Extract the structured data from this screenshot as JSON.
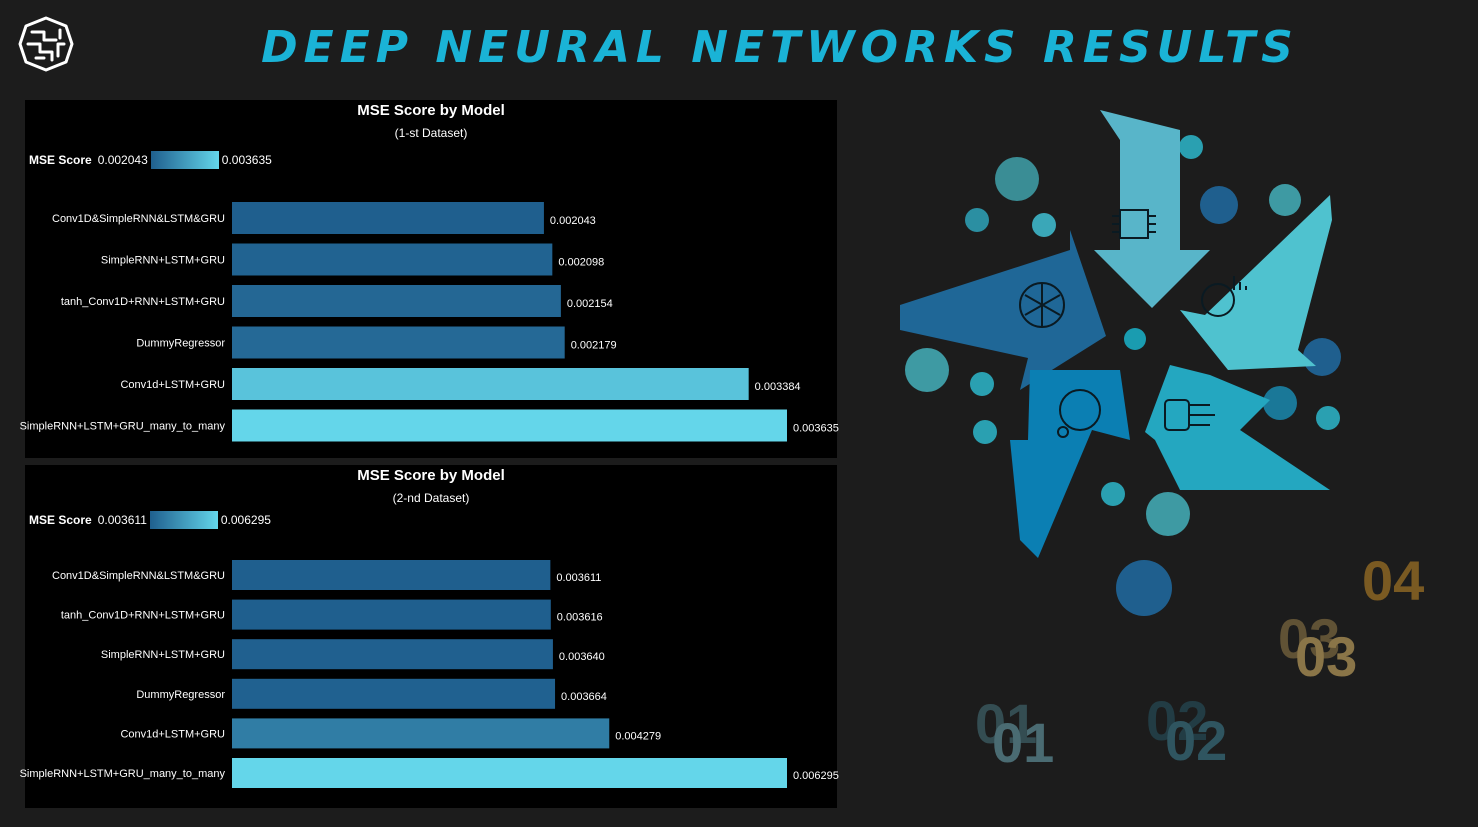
{
  "header": {
    "title": "DEEP NEURAL NETWORKS RESULTS",
    "logo_icon": "brain-circuit-icon"
  },
  "chart_data": [
    {
      "type": "bar",
      "orientation": "horizontal",
      "title": "MSE Score by Model",
      "subtitle": "(1-st Dataset)",
      "legend": {
        "title": "MSE Score",
        "min": "0.002043",
        "max": "0.003635",
        "placement": "top-left"
      },
      "color_scale": [
        "#1f5f8e",
        "#64d6ea"
      ],
      "categories": [
        "Conv1D&SimpleRNN&LSTM&GRU",
        "SimpleRNN+LSTM+GRU",
        "tanh_Conv1D+RNN+LSTM+GRU",
        "DummyRegressor",
        "Conv1d+LSTM+GRU",
        "SimpleRNN+LSTM+GRU_many_to_many"
      ],
      "values": [
        0.002043,
        0.002098,
        0.002154,
        0.002179,
        0.003384,
        0.003635
      ],
      "value_labels": [
        "0.002043",
        "0.002098",
        "0.002154",
        "0.002179",
        "0.003384",
        "0.003635"
      ],
      "xlim": [
        0,
        0.003635
      ]
    },
    {
      "type": "bar",
      "orientation": "horizontal",
      "title": "MSE Score by Model",
      "subtitle": "(2-nd Dataset)",
      "legend": {
        "title": "MSE Score",
        "min": "0.003611",
        "max": "0.006295",
        "placement": "top-left"
      },
      "color_scale": [
        "#1f5f8e",
        "#64d6ea"
      ],
      "categories": [
        "Conv1D&SimpleRNN&LSTM&GRU",
        "tanh_Conv1D+RNN+LSTM+GRU",
        "SimpleRNN+LSTM+GRU",
        "DummyRegressor",
        "Conv1d+LSTM+GRU",
        "SimpleRNN+LSTM+GRU_many_to_many"
      ],
      "values": [
        0.003611,
        0.003616,
        0.00364,
        0.003664,
        0.004279,
        0.006295
      ],
      "value_labels": [
        "0.003611",
        "0.003616",
        "0.003640",
        "0.003664",
        "0.004279",
        "0.006295"
      ],
      "xlim": [
        0,
        0.006295
      ]
    }
  ],
  "infographic": {
    "arrow_icons": [
      "neural-circuit-icon",
      "brain-chart-icon",
      "robot-circuit-icon",
      "network-gear-icon",
      "neural-net-icon"
    ],
    "numbers": [
      {
        "text": "01",
        "shadow": "01",
        "color": "#4a6b72"
      },
      {
        "text": "02",
        "shadow": "02",
        "color": "#2f5560"
      },
      {
        "text": "03",
        "shadow": "03",
        "color": "#8a7548"
      },
      {
        "text": "04",
        "shadow": "04",
        "color": "#7a5a22"
      }
    ]
  }
}
